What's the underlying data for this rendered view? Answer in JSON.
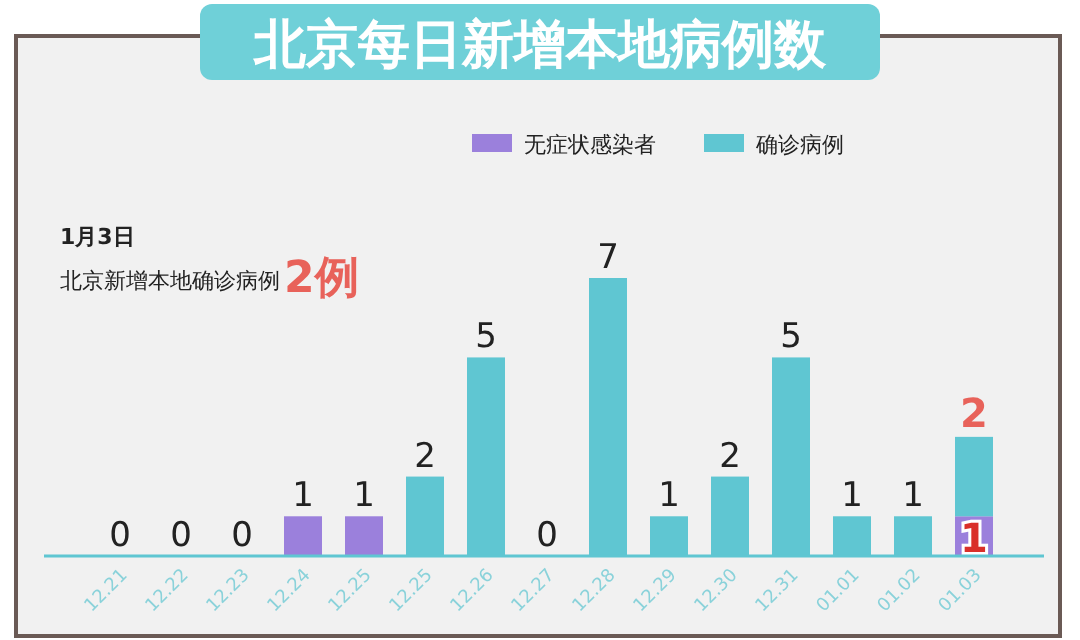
{
  "chart_data": {
    "type": "bar",
    "stacked": true,
    "title": "北京每日新增本地病例数",
    "categories": [
      "12.21",
      "12.22",
      "12.23",
      "12.24",
      "12.25",
      "12.25",
      "12.26",
      "12.27",
      "12.28",
      "12.29",
      "12.30",
      "12.31",
      "01.01",
      "01.02",
      "01.03"
    ],
    "series": [
      {
        "name": "无症状感染者",
        "color": "#9b80dc",
        "values": [
          0,
          0,
          0,
          1,
          1,
          0,
          0,
          0,
          0,
          0,
          0,
          0,
          0,
          0,
          1
        ],
        "value_labels": [
          null,
          null,
          null,
          "1",
          "1",
          null,
          null,
          null,
          null,
          null,
          null,
          null,
          null,
          null,
          "1"
        ]
      },
      {
        "name": "确诊病例",
        "color": "#5fc6d2",
        "values": [
          0,
          0,
          0,
          0,
          0,
          2,
          5,
          0,
          7,
          1,
          2,
          5,
          1,
          1,
          2
        ],
        "value_labels": [
          "0",
          "0",
          "0",
          null,
          null,
          "2",
          "5",
          "0",
          "7",
          "1",
          "2",
          "5",
          "1",
          "1",
          "2"
        ]
      }
    ],
    "annotations": [
      "1月3日",
      "北京新增本地确诊病例",
      "2例"
    ],
    "legend": "top right"
  }
}
